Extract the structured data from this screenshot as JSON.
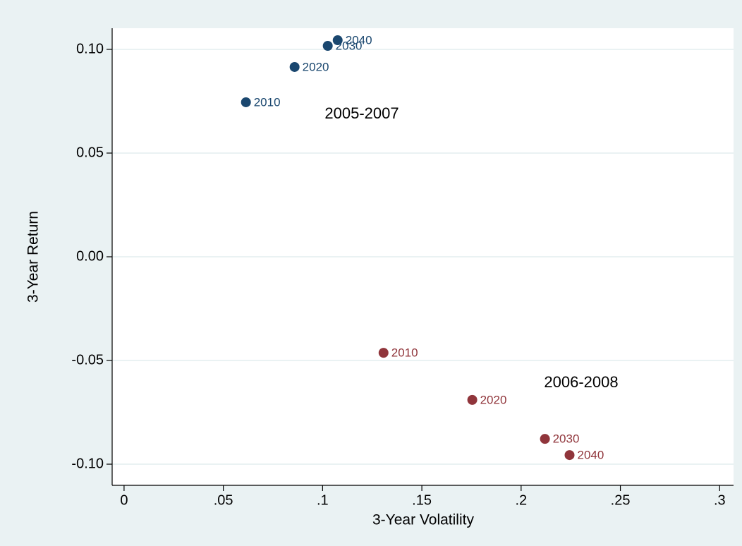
{
  "chart_data": {
    "type": "scatter",
    "x_label": "3-Year Volatility",
    "y_label": "3-Year Return",
    "xlim": [
      -0.006,
      0.307
    ],
    "ylim": [
      -0.1102,
      0.1102
    ],
    "xticks": [
      0,
      {
        "value": 0.05,
        "label": ".05"
      },
      {
        "value": 0.1,
        "label": ".1"
      },
      {
        "value": 0.15,
        "label": ".15"
      },
      {
        "value": 0.2,
        "label": ".2"
      },
      {
        "value": 0.25,
        "label": ".25"
      },
      {
        "value": 0.3,
        "label": ".3"
      }
    ],
    "yticks": [
      {
        "value": -0.1,
        "label": "-0.10"
      },
      {
        "value": -0.05,
        "label": "-0.05"
      },
      {
        "value": 0,
        "label": "0.00"
      },
      {
        "value": 0.05,
        "label": "0.05"
      },
      {
        "value": 0.1,
        "label": "0.10"
      }
    ],
    "grid": true,
    "series": [
      {
        "name": "2005-2007",
        "color": "#1a476f",
        "x": [
          0.0614,
          0.0859,
          0.1026,
          0.1076
        ],
        "values": [
          0.0745,
          0.0915,
          0.1017,
          0.1044
        ],
        "point_labels": [
          "2010",
          "2020",
          "2030",
          "2040"
        ]
      },
      {
        "name": "2006-2008",
        "color": "#90353b",
        "x": [
          0.1307,
          0.1754,
          0.212,
          0.2244
        ],
        "values": [
          -0.0463,
          -0.069,
          -0.0878,
          -0.0956
        ],
        "point_labels": [
          "2010",
          "2020",
          "2030",
          "2040"
        ]
      }
    ]
  }
}
